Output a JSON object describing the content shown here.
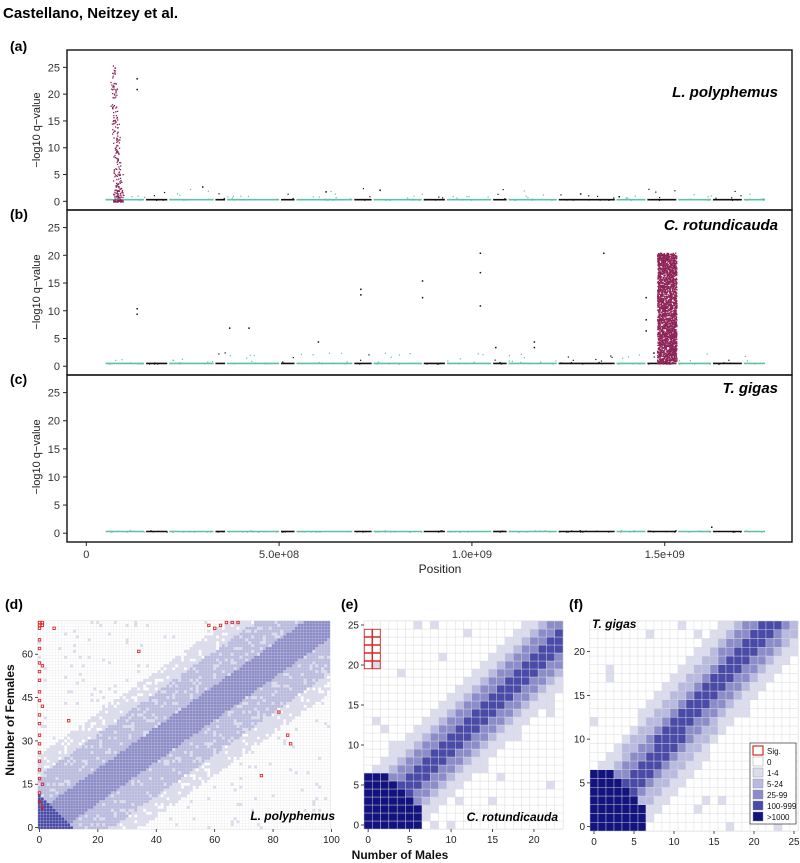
{
  "header": {
    "authors": "Castellano, Neitzey et al."
  },
  "chart_data": [
    {
      "id": "a",
      "type": "scatter",
      "panel_label": "(a)",
      "title": "L. polyphemus",
      "ylabel": "−log10 q−value",
      "xlabel": "",
      "ylim": [
        -0.5,
        26
      ],
      "yticks": [
        0,
        5,
        10,
        15,
        20,
        25
      ],
      "xlim": [
        -50000000.0,
        1830000000.0
      ],
      "significant_x_range": [
        55000000.0,
        100000000.0
      ],
      "significant_max": 25.5,
      "scattered_points": [
        [
          130000000.0,
          23
        ],
        [
          130000000.0,
          21
        ],
        [
          300000000.0,
          2.8
        ],
        [
          620000000.0,
          1.9
        ],
        [
          760000000.0,
          2.2
        ],
        [
          1280000000.0,
          1.5
        ],
        [
          1380000000.0,
          1.0
        ]
      ],
      "baseline_level": 0.3
    },
    {
      "id": "b",
      "type": "scatter",
      "panel_label": "(b)",
      "title": "C. rotundicauda",
      "ylabel": "−log10 q−value",
      "xlabel": "",
      "ylim": [
        -0.5,
        26
      ],
      "yticks": [
        0,
        5,
        10,
        15,
        20,
        25
      ],
      "xlim": [
        -50000000.0,
        1830000000.0
      ],
      "significant_x_range": [
        1480000000.0,
        1530000000.0
      ],
      "significant_max": 20.5,
      "scattered_points": [
        [
          130000000.0,
          10.5
        ],
        [
          130000000.0,
          9.5
        ],
        [
          370000000.0,
          7
        ],
        [
          420000000.0,
          7
        ],
        [
          600000000.0,
          4.5
        ],
        [
          710000000.0,
          14
        ],
        [
          710000000.0,
          13
        ],
        [
          870000000.0,
          15.5
        ],
        [
          870000000.0,
          12.5
        ],
        [
          1020000000.0,
          20.5
        ],
        [
          1020000000.0,
          17
        ],
        [
          1020000000.0,
          11
        ],
        [
          1060000000.0,
          3.5
        ],
        [
          1160000000.0,
          4.5
        ],
        [
          1160000000.0,
          3.5
        ],
        [
          1340000000.0,
          20.5
        ],
        [
          1450000000.0,
          12.5
        ],
        [
          1450000000.0,
          8.5
        ],
        [
          1450000000.0,
          6.5
        ],
        [
          1470000000.0,
          2.5
        ]
      ],
      "baseline_level": 0.5
    },
    {
      "id": "c",
      "type": "scatter",
      "panel_label": "(c)",
      "title": "T. gigas",
      "ylabel": "−log10 q−value",
      "xlabel": "Position",
      "ylim": [
        -0.5,
        26
      ],
      "yticks": [
        0,
        5,
        10,
        15,
        20,
        25
      ],
      "xlim": [
        -50000000.0,
        1830000000.0
      ],
      "xticks": [
        0,
        500000000.0,
        1000000000.0,
        1500000000.0
      ],
      "xtick_labels": [
        "0",
        "5.0e+08",
        "1.0e+09",
        "1.5e+09"
      ],
      "scattered_points": [
        [
          1620000000.0,
          1.2
        ]
      ],
      "baseline_level": 0.3
    },
    {
      "id": "d",
      "type": "heatmap",
      "panel_label": "(d)",
      "title": "L. polyphemus",
      "xlabel": "Number of Males",
      "ylabel": "Number of Females",
      "nx": 100,
      "ny": 72,
      "xticks": [
        0,
        20,
        40,
        60,
        80,
        100
      ],
      "yticks": [
        0,
        15,
        30,
        45,
        60
      ],
      "band_slope": 0.72,
      "significant_cells": [
        [
          0,
          72
        ],
        [
          1,
          72
        ],
        [
          0,
          71
        ],
        [
          1,
          71
        ],
        [
          0,
          70
        ],
        [
          5,
          70
        ],
        [
          0,
          66
        ],
        [
          0,
          63
        ],
        [
          0,
          58
        ],
        [
          1,
          57
        ],
        [
          0,
          55
        ],
        [
          0,
          52
        ],
        [
          0,
          48
        ],
        [
          0,
          45
        ],
        [
          1,
          43
        ],
        [
          0,
          40
        ],
        [
          0,
          37
        ],
        [
          0,
          33
        ],
        [
          0,
          30
        ],
        [
          0,
          27
        ],
        [
          0,
          24
        ],
        [
          0,
          21
        ],
        [
          0,
          18
        ],
        [
          1,
          16
        ],
        [
          0,
          13
        ],
        [
          0,
          10
        ],
        [
          1,
          8
        ],
        [
          34,
          62
        ],
        [
          60,
          70
        ],
        [
          62,
          71
        ],
        [
          64,
          72
        ],
        [
          66,
          72
        ],
        [
          68,
          72
        ],
        [
          58,
          71
        ],
        [
          10,
          38
        ],
        [
          85,
          33
        ],
        [
          86,
          30
        ],
        [
          82,
          41
        ],
        [
          76,
          19
        ]
      ]
    },
    {
      "id": "e",
      "type": "heatmap",
      "panel_label": "(e)",
      "title": "C. rotundicauda",
      "xlabel": "Number of Males",
      "ylabel": "",
      "nx": 24,
      "ny": 26,
      "xticks": [
        0,
        5,
        10,
        15,
        20
      ],
      "yticks": [
        0,
        5,
        10,
        15,
        20,
        25
      ],
      "band_slope": 1.0,
      "significant_cells": [
        [
          0,
          25
        ],
        [
          1,
          25
        ],
        [
          0,
          24
        ],
        [
          1,
          24
        ],
        [
          0,
          23
        ],
        [
          1,
          23
        ],
        [
          0,
          22
        ],
        [
          1,
          22
        ],
        [
          0,
          21
        ],
        [
          1,
          21
        ]
      ]
    },
    {
      "id": "f",
      "type": "heatmap",
      "panel_label": "(f)",
      "title": "T. gigas",
      "xlabel": "",
      "ylabel": "",
      "nx": 26,
      "ny": 24,
      "xticks": [
        0,
        5,
        10,
        15,
        20,
        25
      ],
      "yticks": [
        0,
        5,
        10,
        15,
        20
      ],
      "band_slope": 1.05,
      "significant_cells": [],
      "legend": [
        {
          "label": "Sig.",
          "color": "#ffffff",
          "outline": "#d62828"
        },
        {
          "label": "0",
          "color": "#ffffff"
        },
        {
          "label": "1-4",
          "color": "#dcdcef"
        },
        {
          "label": "5-24",
          "color": "#b9badf"
        },
        {
          "label": "25-99",
          "color": "#8b8cc9"
        },
        {
          "label": "100-999",
          "color": "#4a4aa8"
        },
        {
          "label": ">1000",
          "color": "#13137f"
        }
      ]
    }
  ],
  "colors": {
    "sig_manhattan": "#8e2356",
    "teal": "#5fbfa8",
    "black_points": "#111111",
    "sig_outline": "#d62828",
    "grid": "#d9d9d9",
    "bin_0": "#ffffff",
    "bin_1": "#dcdcef",
    "bin_2": "#b9badf",
    "bin_3": "#8b8cc9",
    "bin_4": "#4a4aa8",
    "bin_5": "#13137f"
  }
}
